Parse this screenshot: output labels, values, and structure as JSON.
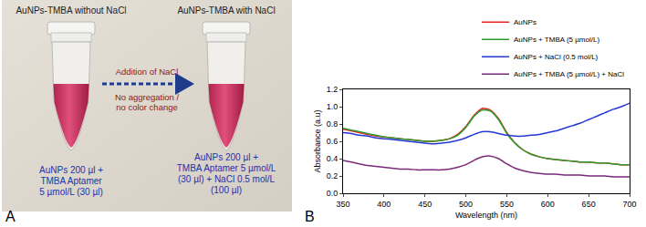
{
  "panel_labels": [
    "A",
    "B"
  ],
  "panel_a": {
    "left_tube": {
      "heading": "AuNPs-TMBA without NaCl",
      "caption": [
        "AuNPs 200 µl +",
        "TMBA Aptamer",
        "5 µmol/L (30 µl)"
      ]
    },
    "right_tube": {
      "heading": "AuNPs-TMBA with NaCl",
      "caption": [
        "AuNPs 200 µl +",
        "TMBA Aptamer 5 µmol/L",
        "(30 µl) + NaCl 0.5 mol/L",
        "(100 µl)"
      ]
    },
    "arrow": {
      "label": "Addition of NaCl",
      "note": [
        "No aggregation /",
        "no color change"
      ]
    }
  },
  "chart_data": {
    "type": "line",
    "x_label": "Wavelength (nm)",
    "y_label": "Absorbance (a.u)",
    "x": [
      350,
      360,
      370,
      380,
      390,
      400,
      410,
      420,
      430,
      440,
      450,
      460,
      470,
      480,
      490,
      500,
      510,
      520,
      530,
      540,
      550,
      560,
      570,
      580,
      590,
      600,
      610,
      620,
      630,
      640,
      650,
      660,
      670,
      680,
      690,
      700
    ],
    "series": [
      {
        "name": "AuNPs",
        "color": "#e8251f",
        "values": [
          0.74,
          0.72,
          0.7,
          0.68,
          0.66,
          0.65,
          0.64,
          0.63,
          0.62,
          0.61,
          0.6,
          0.6,
          0.61,
          0.63,
          0.68,
          0.77,
          0.9,
          0.98,
          0.96,
          0.86,
          0.7,
          0.58,
          0.5,
          0.45,
          0.42,
          0.4,
          0.39,
          0.38,
          0.37,
          0.36,
          0.36,
          0.35,
          0.35,
          0.34,
          0.33,
          0.33
        ]
      },
      {
        "name": "AuNPs + TMBA (5 µmol/L)",
        "color": "#2e9a2e",
        "values": [
          0.75,
          0.73,
          0.71,
          0.69,
          0.67,
          0.65,
          0.64,
          0.63,
          0.62,
          0.61,
          0.6,
          0.6,
          0.61,
          0.63,
          0.67,
          0.76,
          0.89,
          0.96,
          0.95,
          0.85,
          0.69,
          0.58,
          0.5,
          0.45,
          0.42,
          0.4,
          0.39,
          0.38,
          0.37,
          0.36,
          0.36,
          0.35,
          0.35,
          0.34,
          0.33,
          0.33
        ]
      },
      {
        "name": "AuNPs + NaCl (0.5 mol/L)",
        "color": "#2438d6",
        "values": [
          0.7,
          0.69,
          0.67,
          0.66,
          0.64,
          0.63,
          0.62,
          0.61,
          0.6,
          0.59,
          0.58,
          0.57,
          0.58,
          0.59,
          0.61,
          0.64,
          0.68,
          0.71,
          0.71,
          0.69,
          0.67,
          0.66,
          0.66,
          0.67,
          0.68,
          0.7,
          0.72,
          0.75,
          0.78,
          0.81,
          0.85,
          0.89,
          0.93,
          0.97,
          1.0,
          1.04
        ]
      },
      {
        "name": "AuNPs + TMBA (5 µmol/L) + NaCl",
        "color": "#7a2a7a",
        "values": [
          0.38,
          0.36,
          0.34,
          0.32,
          0.31,
          0.3,
          0.29,
          0.28,
          0.28,
          0.27,
          0.27,
          0.27,
          0.27,
          0.28,
          0.3,
          0.33,
          0.38,
          0.42,
          0.43,
          0.4,
          0.34,
          0.29,
          0.26,
          0.24,
          0.23,
          0.22,
          0.22,
          0.21,
          0.21,
          0.21,
          0.2,
          0.2,
          0.2,
          0.19,
          0.19,
          0.19
        ]
      }
    ],
    "xlim": [
      350,
      700
    ],
    "xticks": [
      350,
      400,
      450,
      500,
      550,
      600,
      650,
      700
    ],
    "ylim": [
      0,
      1.2
    ],
    "yticks": [
      {
        "value": 0,
        "label": "0.0"
      },
      0.2,
      0.4,
      0.6,
      0.8,
      {
        "value": 1,
        "label": "1.0"
      },
      1.2
    ],
    "grid": false,
    "legend": "top right"
  }
}
